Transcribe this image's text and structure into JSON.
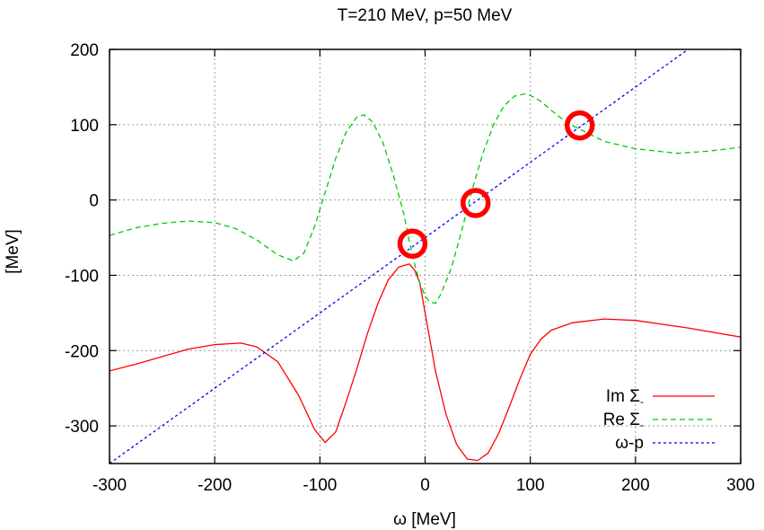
{
  "chart_data": {
    "type": "line",
    "title": "T=210 MeV, p=50 MeV",
    "xlabel": "ω [MeV]",
    "ylabel": "[MeV]",
    "xlim": [
      -300,
      300
    ],
    "ylim": [
      -350,
      200
    ],
    "xticks": [
      -300,
      -200,
      -100,
      0,
      100,
      200,
      300
    ],
    "yticks": [
      -300,
      -200,
      -100,
      0,
      100,
      200
    ],
    "grid": true,
    "legend_position": "bottom-right",
    "series": [
      {
        "name": "Im Σ-",
        "label_main": "Im Σ",
        "label_sub": "-",
        "color": "#ff0000",
        "dash": "solid",
        "x": [
          -300,
          -275,
          -250,
          -225,
          -200,
          -175,
          -160,
          -140,
          -120,
          -105,
          -95,
          -85,
          -75,
          -65,
          -55,
          -45,
          -35,
          -25,
          -15,
          -10,
          -5,
          0,
          10,
          20,
          30,
          40,
          50,
          60,
          70,
          80,
          90,
          100,
          110,
          120,
          140,
          170,
          200,
          250,
          300
        ],
        "y": [
          -227,
          -218,
          -208,
          -198,
          -192,
          -190,
          -195,
          -215,
          -260,
          -305,
          -322,
          -308,
          -268,
          -225,
          -178,
          -138,
          -106,
          -89,
          -85,
          -93,
          -110,
          -150,
          -228,
          -285,
          -325,
          -344,
          -346,
          -336,
          -310,
          -275,
          -238,
          -205,
          -185,
          -173,
          -163,
          -158,
          -160,
          -170,
          -182
        ]
      },
      {
        "name": "Re Σ-",
        "label_main": "Re Σ",
        "label_sub": "-",
        "color": "#00cc00",
        "dash": "dashed",
        "x": [
          -300,
          -275,
          -250,
          -225,
          -200,
          -180,
          -160,
          -140,
          -125,
          -115,
          -105,
          -95,
          -85,
          -75,
          -65,
          -58,
          -50,
          -40,
          -30,
          -20,
          -15,
          -10,
          -5,
          0,
          5,
          10,
          15,
          25,
          35,
          45,
          55,
          65,
          75,
          85,
          95,
          100,
          110,
          120,
          130,
          140,
          150,
          170,
          200,
          240,
          270,
          300
        ],
        "y": [
          -47,
          -37,
          -31,
          -28,
          -30,
          -38,
          -53,
          -73,
          -81,
          -70,
          -35,
          10,
          55,
          90,
          110,
          113,
          104,
          76,
          32,
          -20,
          -55,
          -85,
          -110,
          -128,
          -136,
          -137,
          -125,
          -90,
          -40,
          15,
          62,
          100,
          125,
          138,
          141,
          139,
          131,
          119,
          108,
          99,
          92,
          78,
          68,
          62,
          65,
          70
        ]
      },
      {
        "name": "ω-p",
        "label_main": "ω-p",
        "label_sub": "",
        "color": "#0000ff",
        "dash": "dotted",
        "x": [
          -300,
          250
        ],
        "y": [
          -350,
          200
        ]
      }
    ],
    "annotations": [
      {
        "type": "circle",
        "x": -12,
        "y": -58,
        "color": "#ff0000"
      },
      {
        "type": "circle",
        "x": 48,
        "y": -4,
        "color": "#ff0000"
      },
      {
        "type": "circle",
        "x": 147,
        "y": 99,
        "color": "#ff0000"
      }
    ]
  }
}
